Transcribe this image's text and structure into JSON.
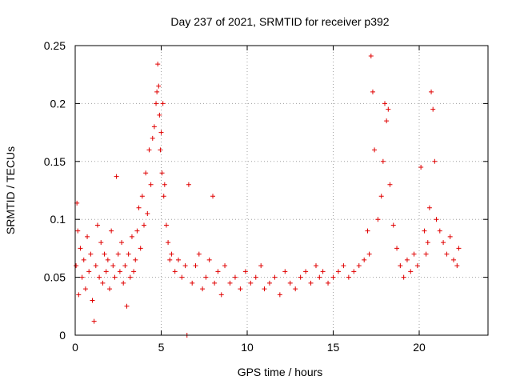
{
  "chart_data": {
    "type": "scatter",
    "title": "Day 237 of 2021, SRMTID for receiver p392",
    "xlabel": "GPS time / hours",
    "ylabel": "SRMTID / TECUs",
    "xlim": [
      0,
      24
    ],
    "ylim": [
      0,
      0.25
    ],
    "x_ticks": [
      0,
      5,
      10,
      15,
      20
    ],
    "x_tick_labels": [
      "0",
      "5",
      "10",
      "15",
      "20"
    ],
    "y_ticks": [
      0,
      0.05,
      0.1,
      0.15,
      0.2,
      0.25
    ],
    "y_tick_labels": [
      "0",
      "0.05",
      "0.1",
      "0.15",
      "0.2",
      "0.25"
    ],
    "grid": true,
    "marker": "+",
    "color": "#e00000",
    "series": [
      {
        "name": "SRMTID",
        "x": [
          0.05,
          0.1,
          0.15,
          0.2,
          0.3,
          0.4,
          0.5,
          0.6,
          0.7,
          0.8,
          0.9,
          1.0,
          1.1,
          1.2,
          1.3,
          1.4,
          1.5,
          1.6,
          1.7,
          1.8,
          1.9,
          2.0,
          2.1,
          2.2,
          2.3,
          2.4,
          2.5,
          2.6,
          2.7,
          2.8,
          2.9,
          3.0,
          3.1,
          3.2,
          3.3,
          3.4,
          3.5,
          3.6,
          3.7,
          3.8,
          3.9,
          4.0,
          4.1,
          4.2,
          4.3,
          4.4,
          4.5,
          4.6,
          4.7,
          4.75,
          4.8,
          4.85,
          4.9,
          4.95,
          5.0,
          5.05,
          5.1,
          5.15,
          5.2,
          5.3,
          5.4,
          5.5,
          5.6,
          5.8,
          6.0,
          6.2,
          6.4,
          6.5,
          6.6,
          6.8,
          7.0,
          7.2,
          7.4,
          7.6,
          7.8,
          8.0,
          8.1,
          8.3,
          8.5,
          8.7,
          9.0,
          9.3,
          9.6,
          9.9,
          10.2,
          10.5,
          10.8,
          11.0,
          11.3,
          11.6,
          11.9,
          12.2,
          12.5,
          12.8,
          13.1,
          13.4,
          13.7,
          14.0,
          14.2,
          14.4,
          14.7,
          15.0,
          15.3,
          15.6,
          15.9,
          16.2,
          16.5,
          16.8,
          17.0,
          17.1,
          17.2,
          17.3,
          17.4,
          17.6,
          17.8,
          17.9,
          18.0,
          18.1,
          18.2,
          18.3,
          18.5,
          18.7,
          18.9,
          19.1,
          19.3,
          19.5,
          19.7,
          19.9,
          20.1,
          20.3,
          20.4,
          20.5,
          20.6,
          20.7,
          20.8,
          20.9,
          21.0,
          21.2,
          21.4,
          21.6,
          21.8,
          22.0,
          22.2,
          22.3
        ],
        "y": [
          0.06,
          0.114,
          0.09,
          0.035,
          0.075,
          0.05,
          0.065,
          0.04,
          0.085,
          0.055,
          0.07,
          0.03,
          0.012,
          0.06,
          0.095,
          0.05,
          0.08,
          0.045,
          0.07,
          0.055,
          0.065,
          0.04,
          0.09,
          0.06,
          0.05,
          0.137,
          0.07,
          0.055,
          0.08,
          0.045,
          0.06,
          0.025,
          0.07,
          0.05,
          0.085,
          0.055,
          0.065,
          0.09,
          0.11,
          0.075,
          0.12,
          0.095,
          0.14,
          0.105,
          0.16,
          0.13,
          0.17,
          0.18,
          0.2,
          0.21,
          0.234,
          0.215,
          0.19,
          0.16,
          0.175,
          0.14,
          0.2,
          0.12,
          0.13,
          0.095,
          0.08,
          0.065,
          0.07,
          0.055,
          0.065,
          0.05,
          0.06,
          0.0,
          0.13,
          0.045,
          0.06,
          0.07,
          0.04,
          0.05,
          0.065,
          0.12,
          0.045,
          0.055,
          0.035,
          0.06,
          0.045,
          0.05,
          0.04,
          0.055,
          0.045,
          0.05,
          0.06,
          0.04,
          0.045,
          0.05,
          0.035,
          0.055,
          0.045,
          0.04,
          0.05,
          0.055,
          0.045,
          0.06,
          0.05,
          0.055,
          0.045,
          0.05,
          0.055,
          0.06,
          0.05,
          0.055,
          0.06,
          0.065,
          0.09,
          0.07,
          0.241,
          0.21,
          0.16,
          0.1,
          0.12,
          0.15,
          0.2,
          0.185,
          0.195,
          0.13,
          0.095,
          0.075,
          0.06,
          0.05,
          0.065,
          0.055,
          0.07,
          0.06,
          0.145,
          0.09,
          0.07,
          0.08,
          0.11,
          0.21,
          0.195,
          0.15,
          0.1,
          0.09,
          0.08,
          0.07,
          0.085,
          0.065,
          0.06,
          0.075
        ]
      }
    ]
  }
}
